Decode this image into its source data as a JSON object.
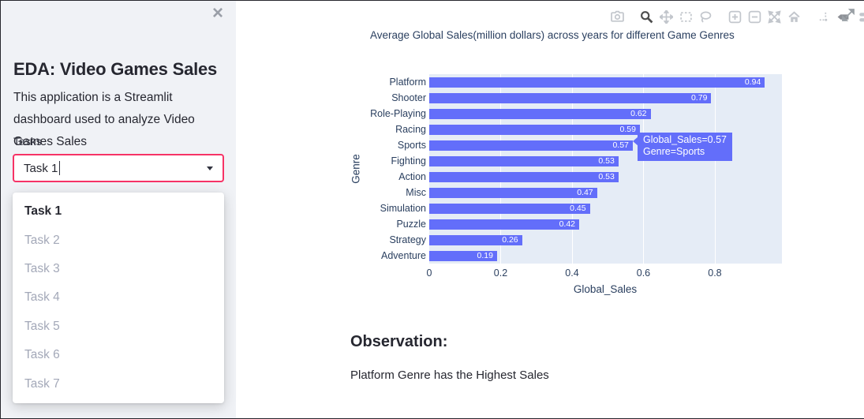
{
  "window": {
    "close_glyph": "×"
  },
  "sidebar": {
    "title": "EDA: Video Games Sales",
    "description": "This application is a Streamlit dashboard used to analyze Video Games Sales",
    "tasks_label": "Tasks",
    "select": {
      "value": "Task 1"
    },
    "dropdown_options": [
      {
        "label": "Task 1",
        "selected": true
      },
      {
        "label": "Task 2",
        "selected": false
      },
      {
        "label": "Task 3",
        "selected": false
      },
      {
        "label": "Task 4",
        "selected": false
      },
      {
        "label": "Task 5",
        "selected": false
      },
      {
        "label": "Task 6",
        "selected": false
      },
      {
        "label": "Task 7",
        "selected": false
      }
    ]
  },
  "toolbar": {
    "icons": [
      "camera",
      "zoom",
      "pan",
      "box-select",
      "lasso-select",
      "zoom-in",
      "zoom-out",
      "autoscale",
      "reset-axes-home",
      "toggle-spike-lines",
      "show-closest-on-hover",
      "compare-data-on-hover",
      "plotly-logo",
      "fullscreen-expand"
    ],
    "active_icon": "zoom"
  },
  "chart_data": {
    "type": "bar",
    "orientation": "horizontal",
    "title": "Average Global Sales(million dollars) across years for different Game Genres",
    "categories": [
      "Platform",
      "Shooter",
      "Role-Playing",
      "Racing",
      "Sports",
      "Fighting",
      "Action",
      "Misc",
      "Simulation",
      "Puzzle",
      "Strategy",
      "Adventure"
    ],
    "values": [
      0.94,
      0.79,
      0.62,
      0.59,
      0.57,
      0.53,
      0.53,
      0.47,
      0.45,
      0.42,
      0.26,
      0.19
    ],
    "xlabel": "Global_Sales",
    "ylabel": "Genre",
    "xlim": [
      0,
      0.988
    ],
    "xticks": [
      0,
      0.2,
      0.4,
      0.6,
      0.8
    ],
    "grid": true,
    "legend": "none",
    "bar_color": "#636EFA",
    "plot_bgcolor": "#E5ECF6"
  },
  "tooltip": {
    "line1": "Global_Sales=0.57",
    "line2": "Genre=Sports"
  },
  "observation": {
    "heading": "Observation:",
    "text": "Platform Genre has the Highest Sales"
  },
  "colors": {
    "accent_primary": "#F63366",
    "bar": "#636EFA",
    "plot_background": "#E5ECF6",
    "axis_text": "#2A3F5F",
    "sidebar_background": "#F0F2F6",
    "text_dark": "#262730",
    "muted_option": "#A3A8B8",
    "plotly_logo_blue": "#3D9DF5",
    "modebar_inactive": "#C2C6CC",
    "modebar_active": "#4D4D4D"
  }
}
